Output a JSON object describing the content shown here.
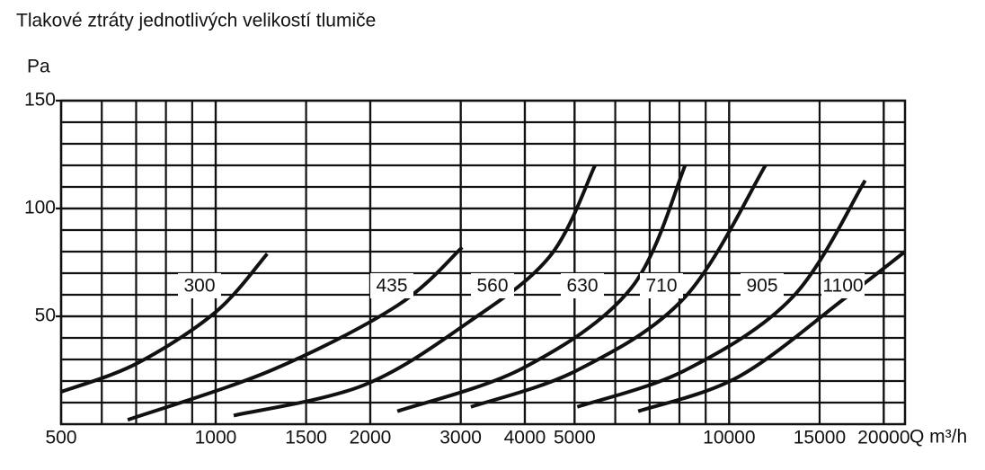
{
  "chart_data": {
    "type": "line",
    "title": "Tlakové ztráty jednotlivých velikostí tlumiče",
    "y_label": "Pa",
    "x_label": "Q m³/h",
    "xscale": "log",
    "xlim": [
      500,
      22000
    ],
    "xticks": [
      500,
      1000,
      1500,
      2000,
      3000,
      4000,
      5000,
      10000,
      15000,
      20000
    ],
    "ylim": [
      0,
      150
    ],
    "yticks": [
      50,
      100,
      150
    ],
    "grid": true,
    "series": [
      {
        "name": "300",
        "color": "#111111",
        "x": [
          500,
          700,
          1000,
          1260
        ],
        "values": [
          15,
          28,
          52,
          79
        ]
      },
      {
        "name": "435",
        "color": "#111111",
        "x": [
          674,
          1284,
          2258,
          3020
        ],
        "values": [
          2,
          25,
          55,
          82
        ]
      },
      {
        "name": "560",
        "color": "#111111",
        "x": [
          1084,
          1938,
          3116,
          4481,
          5480
        ],
        "values": [
          4,
          18,
          47.5,
          78,
          120
        ]
      },
      {
        "name": "630",
        "color": "#111111",
        "x": [
          2258,
          3967,
          6440,
          8210
        ],
        "values": [
          6,
          26,
          63,
          120
        ]
      },
      {
        "name": "710",
        "color": "#111111",
        "x": [
          3140,
          5060,
          8210,
          11770
        ],
        "values": [
          8,
          25,
          59,
          120
        ]
      },
      {
        "name": "905",
        "color": "#111111",
        "x": [
          5060,
          8210,
          13300,
          18400
        ],
        "values": [
          8,
          25,
          59,
          113
        ]
      },
      {
        "name": "1100",
        "color": "#111111",
        "x": [
          6650,
          10430,
          16930,
          22000
        ],
        "values": [
          6,
          22,
          59,
          80
        ]
      }
    ]
  }
}
